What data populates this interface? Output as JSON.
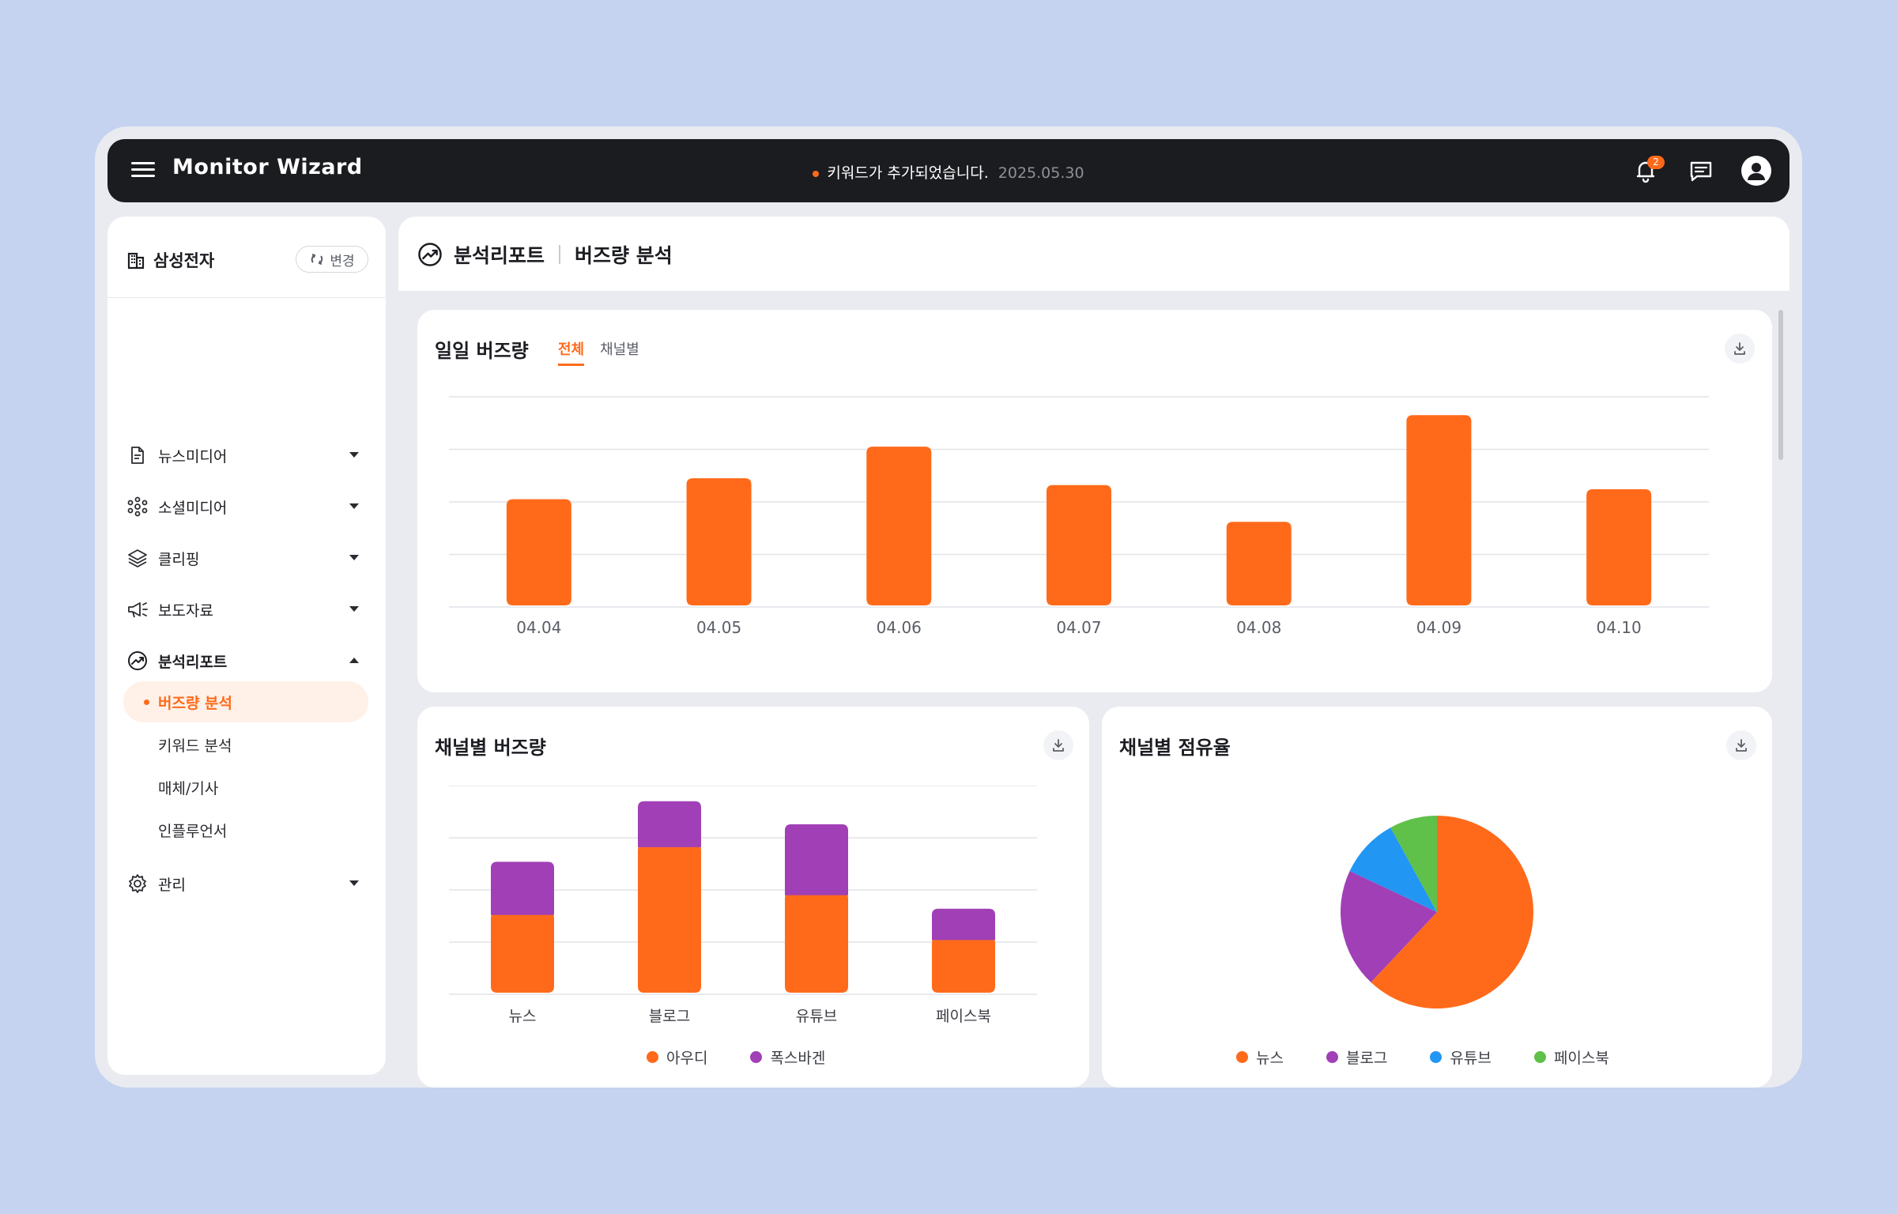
{
  "app": {
    "brand": "Monitor Wizard",
    "notice_text": "키워드가 추가되었습니다.",
    "notice_date": "2025.05.30",
    "notification_count": "2",
    "accent": "#ff6a1a"
  },
  "sidebar": {
    "company": "삼성전자",
    "change_label": "변경",
    "items": [
      {
        "label": "뉴스미디어",
        "icon": "document-icon"
      },
      {
        "label": "소셜미디어",
        "icon": "network-icon"
      },
      {
        "label": "클리핑",
        "icon": "layers-icon"
      },
      {
        "label": "보도자료",
        "icon": "megaphone-icon"
      },
      {
        "label": "분석리포트",
        "icon": "trend-icon"
      },
      {
        "label": "관리",
        "icon": "gear-icon"
      }
    ],
    "sub_items": [
      "버즈량 분석",
      "키워드 분석",
      "매체/기사",
      "인플루언서"
    ]
  },
  "header": {
    "section": "분석리포트",
    "page": "버즈량 분석"
  },
  "daily": {
    "title": "일일 버즈량",
    "tabs": [
      "전체",
      "채널별"
    ],
    "chart_data": {
      "type": "bar",
      "categories": [
        "04.04",
        "04.05",
        "04.06",
        "04.07",
        "04.08",
        "04.09",
        "04.10"
      ],
      "values": [
        205,
        245,
        305,
        232,
        162,
        365,
        224
      ],
      "ylim": [
        0,
        400
      ],
      "grid": true,
      "color": "#ff6a1a"
    }
  },
  "channel": {
    "title": "채널별 버즈량",
    "chart_data": {
      "type": "bar",
      "stacked": true,
      "categories": [
        "뉴스",
        "블로그",
        "유튜브",
        "페이스북"
      ],
      "series": [
        {
          "name": "아우디",
          "values": [
            152,
            282,
            190,
            104
          ],
          "color": "#ff6a1a"
        },
        {
          "name": "폭스바겐",
          "values": [
            102,
            88,
            136,
            60
          ],
          "color": "#a13fb6"
        }
      ],
      "ylim": [
        0,
        400
      ],
      "grid": true,
      "legend": "bottom"
    }
  },
  "share": {
    "title": "채널별 점유율",
    "chart_data": {
      "type": "pie",
      "labels": [
        "뉴스",
        "블로그",
        "유튜브",
        "페이스북"
      ],
      "values": [
        62,
        20,
        10,
        8
      ],
      "colors": [
        "#ff6a1a",
        "#a13fb6",
        "#2196f3",
        "#5fc04a"
      ],
      "legend": "bottom"
    }
  }
}
